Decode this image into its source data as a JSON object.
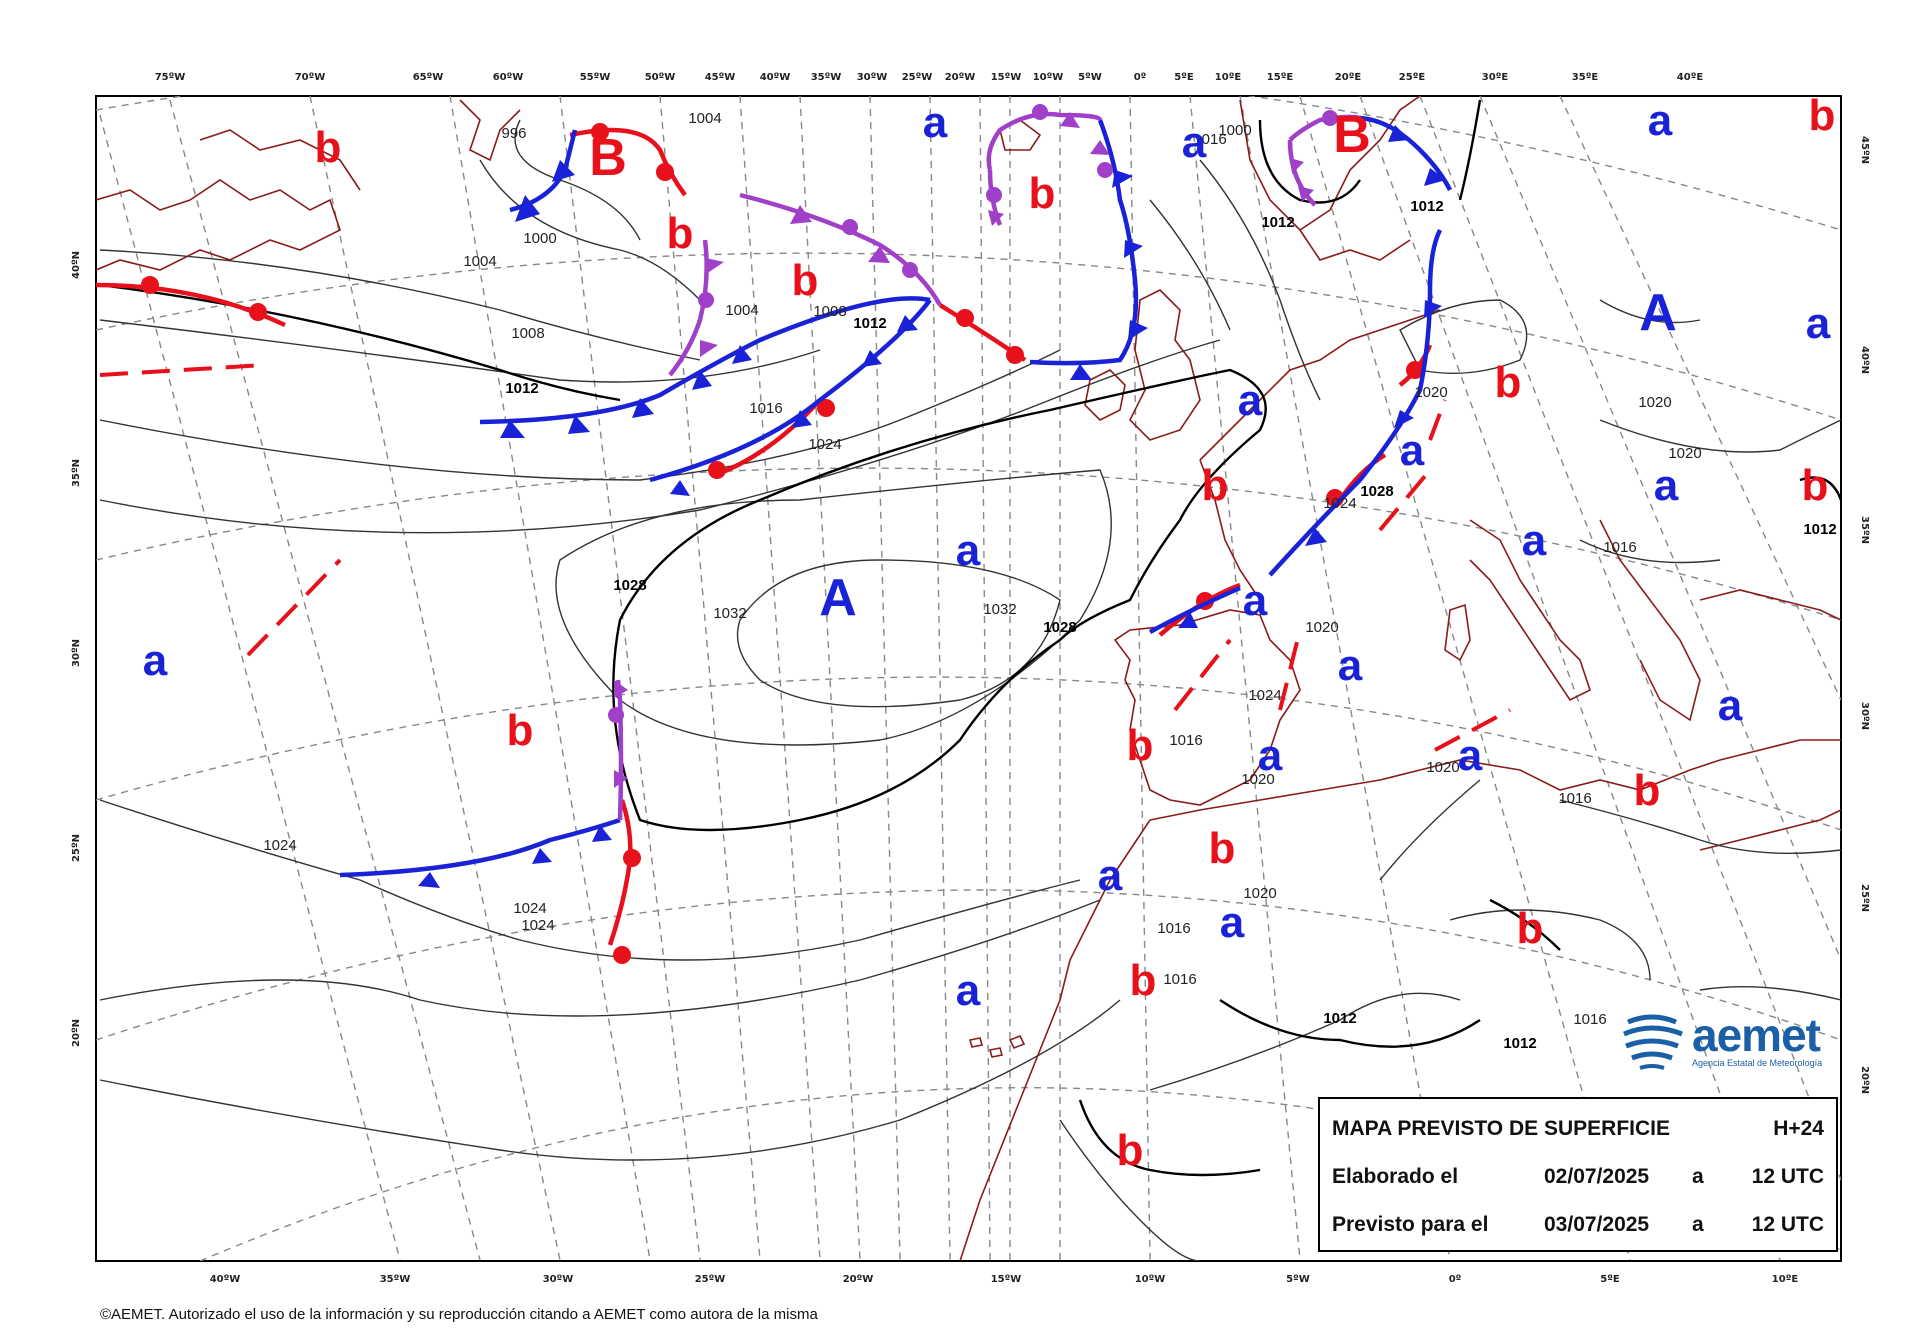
{
  "map": {
    "top_longitudes": [
      "75ºW",
      "70ºW",
      "65ºW",
      "60ºW",
      "55ºW",
      "50ºW",
      "45ºW",
      "40ºW",
      "35ºW",
      "30ºW",
      "25ºW",
      "20ºW",
      "15ºW",
      "10ºW",
      "5ºW",
      "0º",
      "5ºE",
      "10ºE",
      "15ºE",
      "20ºE",
      "25ºE",
      "30ºE",
      "35ºE",
      "40ºE"
    ],
    "bottom_longitudes": [
      "40ºW",
      "35ºW",
      "30ºW",
      "25ºW",
      "20ºW",
      "15ºW",
      "10ºW",
      "5ºW",
      "0º",
      "5ºE",
      "10ºE"
    ],
    "left_latitudes": [
      "40ºN",
      "35ºN",
      "30ºN",
      "25ºN",
      "20ºN"
    ],
    "right_latitudes": [
      "45ºN",
      "40ºN",
      "35ºN",
      "30ºN",
      "25ºN",
      "20ºN"
    ],
    "pressure_centers": [
      {
        "label": "A",
        "type": "high",
        "size": "big"
      },
      {
        "label": "A",
        "type": "high",
        "size": "big"
      },
      {
        "label": "B",
        "type": "low",
        "size": "big"
      },
      {
        "label": "B",
        "type": "low",
        "size": "big"
      },
      {
        "label": "a",
        "type": "high"
      },
      {
        "label": "a",
        "type": "high"
      },
      {
        "label": "a",
        "type": "high"
      },
      {
        "label": "a",
        "type": "high"
      },
      {
        "label": "a",
        "type": "high"
      },
      {
        "label": "a",
        "type": "high"
      },
      {
        "label": "a",
        "type": "high"
      },
      {
        "label": "a",
        "type": "high"
      },
      {
        "label": "a",
        "type": "high"
      },
      {
        "label": "a",
        "type": "high"
      },
      {
        "label": "a",
        "type": "high"
      },
      {
        "label": "a",
        "type": "high"
      },
      {
        "label": "a",
        "type": "high"
      },
      {
        "label": "a",
        "type": "high"
      },
      {
        "label": "a",
        "type": "high"
      },
      {
        "label": "a",
        "type": "high"
      },
      {
        "label": "a",
        "type": "high"
      },
      {
        "label": "a",
        "type": "high"
      },
      {
        "label": "b",
        "type": "low"
      },
      {
        "label": "b",
        "type": "low"
      },
      {
        "label": "b",
        "type": "low"
      },
      {
        "label": "b",
        "type": "low"
      },
      {
        "label": "b",
        "type": "low"
      },
      {
        "label": "b",
        "type": "low"
      },
      {
        "label": "b",
        "type": "low"
      },
      {
        "label": "b",
        "type": "low"
      },
      {
        "label": "b",
        "type": "low"
      },
      {
        "label": "b",
        "type": "low"
      },
      {
        "label": "b",
        "type": "low"
      },
      {
        "label": "b",
        "type": "low"
      },
      {
        "label": "b",
        "type": "low"
      },
      {
        "label": "b",
        "type": "low"
      },
      {
        "label": "b",
        "type": "low"
      }
    ],
    "isobar_labels": [
      "996",
      "1000",
      "1000",
      "1004",
      "1004",
      "1004",
      "1008",
      "1008",
      "1012",
      "1012",
      "1012",
      "1012",
      "1016",
      "1016",
      "1016",
      "1016",
      "1016",
      "1016",
      "1016",
      "1016",
      "1020",
      "1020",
      "1020",
      "1020",
      "1020",
      "1020",
      "1020",
      "1024",
      "1024",
      "1024",
      "1024",
      "1024",
      "1024",
      "1028",
      "1028",
      "1028",
      "1032",
      "1032",
      "1012",
      "1012",
      "1012"
    ],
    "colors": {
      "warm_front": "#e8101a",
      "cold_front": "#1a22d8",
      "occluded_front": "#a040c8",
      "trough": "#e8101a",
      "coastline": "#8b1a1a",
      "high": "#1a22d8",
      "low": "#e8101a",
      "isobar": "#222222",
      "grid": "#888888"
    }
  },
  "legend": {
    "title": "MAPA PREVISTO DE SUPERFICIE",
    "step": "H+24",
    "row1_label": "Elaborado el",
    "row1_date": "02/07/2025",
    "row1_a": "a",
    "row1_time": "12 UTC",
    "row2_label": "Previsto para el",
    "row2_date": "03/07/2025",
    "row2_a": "a",
    "row2_time": "12 UTC"
  },
  "logo": {
    "word": "aemet",
    "subtitle": "Agencia Estatal de Meteorología"
  },
  "copyright": "©AEMET. Autorizado el uso de la información y su reproducción citando a AEMET como autora de la misma"
}
